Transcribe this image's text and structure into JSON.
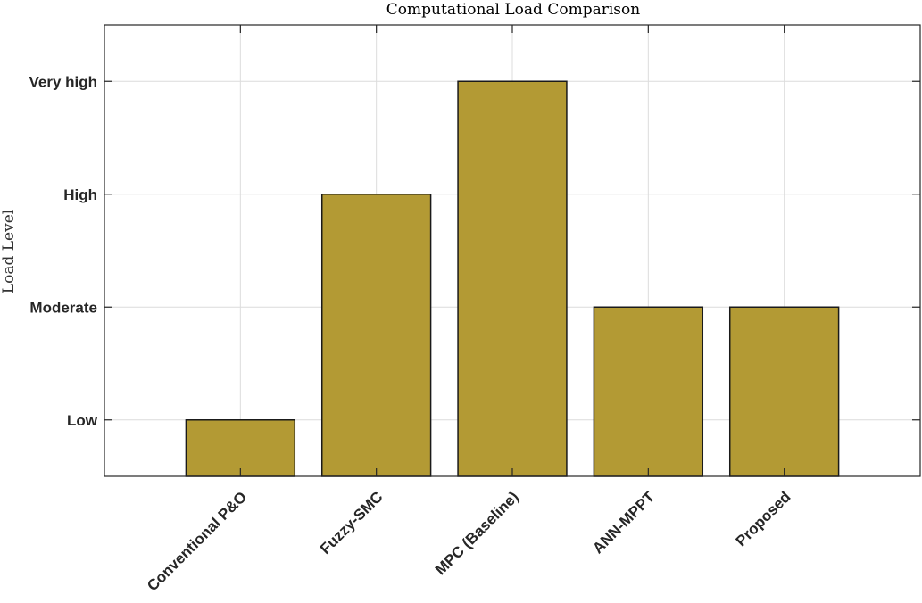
{
  "chart_data": {
    "type": "bar",
    "title": "Computational Load Comparison",
    "xlabel": "",
    "ylabel": "Load Level",
    "categories": [
      "Conventional P&O",
      "Fuzzy-SMC",
      "MPC (Baseline)",
      "ANN-MPPT",
      "Proposed"
    ],
    "values": [
      1,
      3,
      4,
      2,
      2
    ],
    "ylim": [
      0.5,
      4.5
    ],
    "xlim": [
      0,
      6
    ],
    "yticks": [
      1,
      2,
      3,
      4
    ],
    "ytick_labels": [
      "Low",
      "Moderate",
      "High",
      "Very high"
    ],
    "grid": true,
    "colors": {
      "bar": "#b39a34",
      "edge": "#1a1a1a",
      "grid": "#dcdcdc",
      "axes": "#262626"
    }
  }
}
